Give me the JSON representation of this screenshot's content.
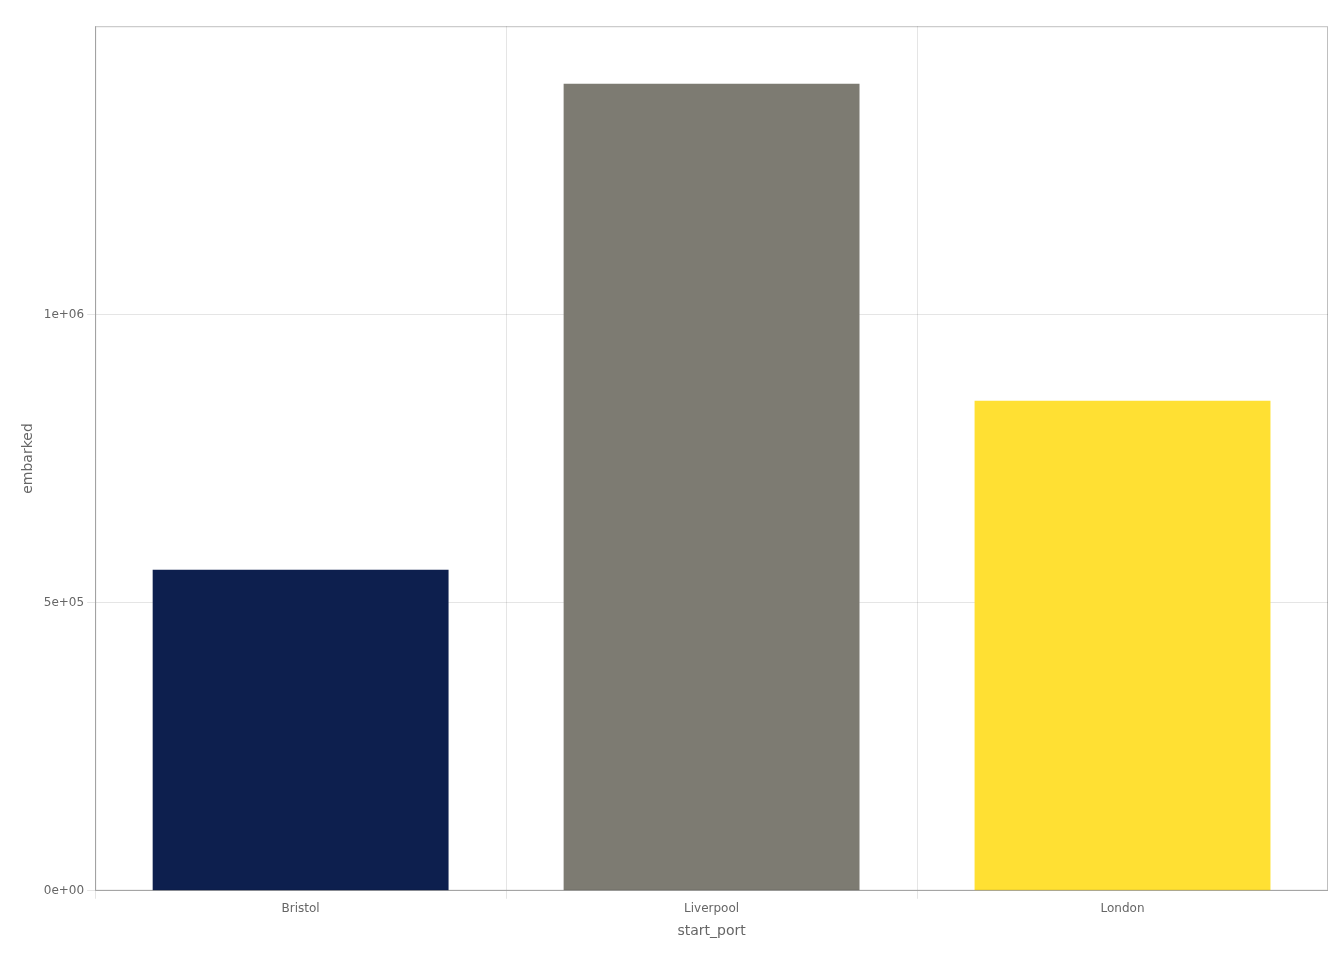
{
  "chart_data": {
    "type": "bar",
    "categories": [
      "Bristol",
      "Liverpool",
      "London"
    ],
    "values": [
      557000,
      1400000,
      850000
    ],
    "colors": [
      "#0d1f4e",
      "#7d7b72",
      "#ffe033"
    ],
    "xlabel": "start_port",
    "ylabel": "embarked",
    "ylim": [
      0,
      1500000
    ],
    "yticks": [
      {
        "value": 0,
        "label": "0e+00"
      },
      {
        "value": 500000,
        "label": "5e+05"
      },
      {
        "value": 1000000,
        "label": "1e+06"
      }
    ],
    "grid": true
  }
}
